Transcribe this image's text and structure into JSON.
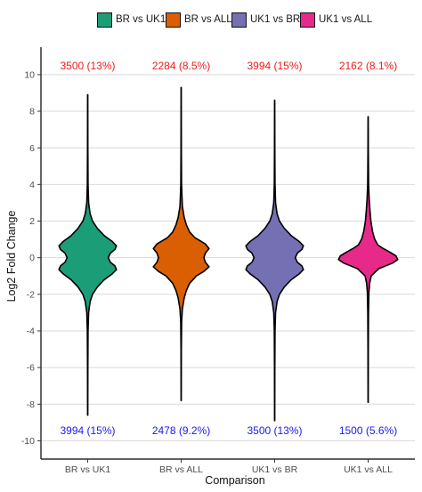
{
  "legend": {
    "items": [
      {
        "label": "BR vs UK1",
        "color": "#1b9e77"
      },
      {
        "label": "BR vs ALL",
        "color": "#d95f02"
      },
      {
        "label": "UK1 vs BR",
        "color": "#7570b3"
      },
      {
        "label": "UK1 vs ALL",
        "color": "#e7298a"
      }
    ]
  },
  "chart_data": {
    "type": "violin",
    "xlabel": "Comparison",
    "ylabel": "Log2 Fold Change",
    "ylim": [
      -11,
      11.5
    ],
    "yticks": [
      -10,
      -8,
      -6,
      -4,
      -2,
      0,
      2,
      4,
      6,
      8,
      10
    ],
    "grid": true,
    "legend_position": "top",
    "categories": [
      "BR vs UK1",
      "BR vs ALL",
      "UK1 vs BR",
      "UK1 vs ALL"
    ],
    "series": [
      {
        "name": "BR vs UK1",
        "color": "#1b9e77",
        "min": -8.6,
        "max": 8.9,
        "top_label": "3500 (13%)",
        "bottom_label": "3994 (15%)",
        "density": [
          [
            -8.6,
            0.003
          ],
          [
            -6,
            0.006
          ],
          [
            -4,
            0.012
          ],
          [
            -3,
            0.03
          ],
          [
            -2.4,
            0.08
          ],
          [
            -2,
            0.16
          ],
          [
            -1.6,
            0.32
          ],
          [
            -1.2,
            0.55
          ],
          [
            -0.9,
            0.8
          ],
          [
            -0.65,
            0.95
          ],
          [
            -0.45,
            0.9
          ],
          [
            -0.25,
            0.75
          ],
          [
            0,
            0.68
          ],
          [
            0.25,
            0.75
          ],
          [
            0.45,
            0.9
          ],
          [
            0.65,
            0.95
          ],
          [
            0.9,
            0.8
          ],
          [
            1.2,
            0.55
          ],
          [
            1.6,
            0.32
          ],
          [
            2,
            0.16
          ],
          [
            2.4,
            0.08
          ],
          [
            3,
            0.03
          ],
          [
            4,
            0.012
          ],
          [
            6,
            0.006
          ],
          [
            8.9,
            0.003
          ]
        ]
      },
      {
        "name": "BR vs ALL",
        "color": "#d95f02",
        "min": -7.8,
        "max": 9.3,
        "top_label": "2284 (8.5%)",
        "bottom_label": "2478 (9.2%)",
        "density": [
          [
            -7.8,
            0.003
          ],
          [
            -5,
            0.006
          ],
          [
            -3.5,
            0.015
          ],
          [
            -2.8,
            0.04
          ],
          [
            -2.2,
            0.1
          ],
          [
            -1.8,
            0.17
          ],
          [
            -1.4,
            0.28
          ],
          [
            -1,
            0.5
          ],
          [
            -0.75,
            0.75
          ],
          [
            -0.5,
            0.92
          ],
          [
            -0.25,
            0.8
          ],
          [
            0,
            0.75
          ],
          [
            0.25,
            0.8
          ],
          [
            0.5,
            0.92
          ],
          [
            0.75,
            0.8
          ],
          [
            1.1,
            0.45
          ],
          [
            1.4,
            0.28
          ],
          [
            1.8,
            0.17
          ],
          [
            2.2,
            0.1
          ],
          [
            2.8,
            0.04
          ],
          [
            4,
            0.012
          ],
          [
            6,
            0.006
          ],
          [
            9.3,
            0.003
          ]
        ]
      },
      {
        "name": "UK1 vs BR",
        "color": "#7570b3",
        "min": -8.9,
        "max": 8.6,
        "top_label": "3994 (15%)",
        "bottom_label": "3500 (13%)",
        "density": [
          [
            -8.9,
            0.003
          ],
          [
            -6,
            0.006
          ],
          [
            -4,
            0.012
          ],
          [
            -3,
            0.03
          ],
          [
            -2.4,
            0.08
          ],
          [
            -2,
            0.16
          ],
          [
            -1.6,
            0.32
          ],
          [
            -1.2,
            0.55
          ],
          [
            -0.9,
            0.8
          ],
          [
            -0.65,
            0.95
          ],
          [
            -0.45,
            0.9
          ],
          [
            -0.25,
            0.75
          ],
          [
            0,
            0.68
          ],
          [
            0.25,
            0.75
          ],
          [
            0.45,
            0.9
          ],
          [
            0.65,
            0.95
          ],
          [
            0.9,
            0.8
          ],
          [
            1.2,
            0.55
          ],
          [
            1.6,
            0.32
          ],
          [
            2,
            0.16
          ],
          [
            2.4,
            0.08
          ],
          [
            3,
            0.03
          ],
          [
            4,
            0.012
          ],
          [
            6,
            0.006
          ],
          [
            8.6,
            0.003
          ]
        ]
      },
      {
        "name": "UK1 vs ALL",
        "color": "#e7298a",
        "min": -7.9,
        "max": 7.7,
        "top_label": "2162 (8.1%)",
        "bottom_label": "1500 (5.6%)",
        "density": [
          [
            -7.9,
            0.003
          ],
          [
            -5,
            0.006
          ],
          [
            -3,
            0.012
          ],
          [
            -1.9,
            0.025
          ],
          [
            -1.4,
            0.05
          ],
          [
            -1,
            0.1
          ],
          [
            -0.6,
            0.35
          ],
          [
            -0.3,
            0.8
          ],
          [
            -0.1,
            0.98
          ],
          [
            0.1,
            0.92
          ],
          [
            0.3,
            0.72
          ],
          [
            0.5,
            0.5
          ],
          [
            0.7,
            0.32
          ],
          [
            1,
            0.22
          ],
          [
            1.4,
            0.15
          ],
          [
            2,
            0.09
          ],
          [
            2.6,
            0.06
          ],
          [
            3.2,
            0.035
          ],
          [
            4,
            0.015
          ],
          [
            6,
            0.006
          ],
          [
            7.7,
            0.003
          ]
        ]
      }
    ]
  }
}
